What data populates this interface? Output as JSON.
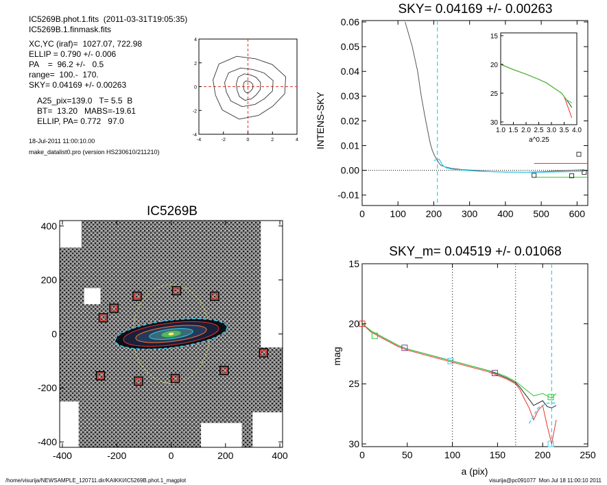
{
  "header": {
    "lines": [
      "IC5269B.phot.1.fits  (2011-03-31T19:05:35)",
      "IC5269B.1.finmask.fits",
      "XC,YC (iraf)=  1027.07, 722.98",
      "ELLIP = 0.790 +/- 0.006",
      "PA    =  96.2 +/-   0.5",
      "range=  100.-  170.",
      "SKY= 0.04169 +/- 0.00263",
      "A25_pix=139.0   T= 5.5  B",
      "BT=  13.20   MABS=-19.61",
      "ELLIP, PA= 0.772   97.0"
    ],
    "date": "18-Jul-2011 11:00:10.00",
    "program": "make_datalist0.pro (version HS230610/211210)"
  },
  "footer": {
    "path": "/home/visurija/NEWSAMPLE_120711.dir/KAIKKI/IC5269B.phot.1_magplot",
    "user": "visurija@pc091077  Mon Jul 18 11:00:10 2011"
  },
  "colors": {
    "cyan": "#33ccee",
    "red": "#e8302a",
    "green": "#2ec82e",
    "grey": "#555555",
    "magenta": "#8a3a9a",
    "yellow": "#c8d060"
  },
  "chart_data": [
    {
      "id": "contour",
      "type": "contour",
      "xlim": [
        -4,
        4
      ],
      "ylim": [
        -4,
        4
      ],
      "xticks": [
        "-4",
        "-2",
        "0",
        "2",
        "4"
      ],
      "yticks": [
        "4",
        "2",
        "0",
        "-2",
        "-4"
      ]
    },
    {
      "id": "sky_profile",
      "type": "line",
      "title": "SKY= 0.04169 +/- 0.00263",
      "xlabel": "",
      "ylabel": "INTENS-SKY",
      "xlim": [
        0,
        630
      ],
      "ylim": [
        -0.012,
        0.06
      ],
      "xticks": [
        "0",
        "100",
        "200",
        "300",
        "400",
        "500",
        "600"
      ],
      "yticks": [
        "0.06",
        "0.05",
        "0.04",
        "0.03",
        "0.02",
        "0.01",
        "0.00",
        "-0.01"
      ],
      "vline_x": 210,
      "series": [
        {
          "x": [
            120,
            140,
            155,
            165,
            175,
            183,
            190,
            196,
            202,
            208,
            214,
            220,
            230,
            250,
            280,
            320,
            360,
            400,
            450,
            500,
            550,
            600,
            620
          ],
          "y": [
            0.06,
            0.05,
            0.04,
            0.03,
            0.022,
            0.016,
            0.011,
            0.008,
            0.006,
            0.0045,
            0.003,
            0.002,
            0.0015,
            0.0008,
            0.0003,
            0,
            -0.0005,
            -0.0007,
            -0.0008,
            -0.0006,
            -0.0002,
            0.0001,
            0.0002
          ]
        },
        {
          "x": [
            200,
            215,
            225,
            235,
            250,
            280,
            320,
            400,
            480,
            550,
            620
          ],
          "y": [
            0.004,
            0.0045,
            0.002,
            0.001,
            0.0005,
            0.0001,
            -0.0003,
            -0.0007,
            -0.0008,
            -0.0006,
            -0.0004
          ]
        }
      ],
      "squares": [
        {
          "x": 480,
          "y": -0.002
        },
        {
          "x": 585,
          "y": -0.0022
        },
        {
          "x": 605,
          "y": 0.0065
        },
        {
          "x": 620,
          "y": -0.0008
        }
      ],
      "ref_lines": [
        {
          "y": 0.0028,
          "x0": 480,
          "x1": 630
        },
        {
          "y": -0.0028,
          "x0": 480,
          "x1": 630
        }
      ],
      "inset": {
        "xlabel": "a^0.25",
        "xlim": [
          1.0,
          4.0
        ],
        "ylim": [
          15,
          30
        ],
        "xticks": [
          "1.0",
          "1.5",
          "2.0",
          "2.5",
          "3.0",
          "3.5",
          "4.0"
        ],
        "yticks": [
          "15",
          "20",
          "25",
          "30"
        ],
        "x": [
          1.0,
          1.5,
          2.0,
          2.5,
          2.8,
          3.0,
          3.2,
          3.4,
          3.5,
          3.6,
          3.7,
          3.8
        ],
        "y": [
          20.0,
          20.9,
          21.7,
          22.6,
          23.2,
          23.8,
          24.4,
          25.0,
          25.6,
          26.2,
          26.8,
          27.5
        ]
      }
    },
    {
      "id": "galaxy_image",
      "type": "image",
      "title": "IC5269B",
      "xlim": [
        -410,
        410
      ],
      "ylim": [
        -420,
        420
      ],
      "xticks": [
        "-400",
        "-200",
        "0",
        "200",
        "400"
      ],
      "yticks": [
        "400",
        "200",
        "0",
        "-200",
        "-400"
      ],
      "boxes": [
        [
          -125,
          140
        ],
        [
          20,
          160
        ],
        [
          160,
          140
        ],
        [
          -210,
          95
        ],
        [
          -250,
          60
        ],
        [
          340,
          -70
        ],
        [
          195,
          -135
        ],
        [
          -260,
          -155
        ],
        [
          -120,
          -175
        ],
        [
          15,
          -165
        ]
      ]
    },
    {
      "id": "mag_profile",
      "type": "line",
      "title": "SKY_m=  0.04519 +/- 0.01068",
      "xlabel": "a (pix)",
      "ylabel": "mag",
      "xlim": [
        0,
        250
      ],
      "ylim": [
        15,
        30
      ],
      "xticks": [
        "0",
        "50",
        "100",
        "150",
        "200",
        "250"
      ],
      "yticks": [
        "15",
        "20",
        "25",
        "30"
      ],
      "dotted_x": [
        100,
        170
      ],
      "dashed_x": 210,
      "series": [
        {
          "x": [
            0,
            10,
            20,
            30,
            40,
            50,
            60,
            70,
            80,
            90,
            100,
            110,
            120,
            130,
            140,
            150,
            160,
            170,
            175,
            180,
            185,
            190,
            195,
            200,
            205,
            210,
            215
          ],
          "y": [
            20.0,
            20.6,
            21.0,
            21.4,
            21.8,
            22.1,
            22.3,
            22.5,
            22.7,
            22.9,
            23.1,
            23.3,
            23.5,
            23.7,
            23.9,
            24.2,
            24.5,
            24.9,
            25.3,
            25.8,
            26.3,
            26.8,
            26.6,
            26.4,
            26.9,
            27.0,
            26.8
          ]
        },
        {
          "x": [
            0,
            10,
            20,
            30,
            40,
            50,
            60,
            70,
            80,
            90,
            100,
            110,
            120,
            130,
            140,
            150,
            160,
            170,
            175,
            180,
            185,
            190,
            195,
            200,
            205,
            210,
            215
          ],
          "y": [
            20.0,
            20.7,
            21.1,
            21.5,
            21.9,
            22.2,
            22.4,
            22.6,
            22.8,
            23.0,
            23.2,
            23.4,
            23.6,
            23.8,
            24.0,
            24.3,
            24.6,
            25.0,
            25.5,
            26.3,
            27.0,
            28.0,
            27.2,
            26.8,
            28.5,
            30.0,
            28.0
          ]
        },
        {
          "x": [
            0,
            10,
            20,
            30,
            40,
            50,
            60,
            70,
            80,
            90,
            100,
            110,
            120,
            130,
            140,
            150,
            160,
            170,
            175,
            180,
            185,
            190,
            195,
            200,
            205,
            210,
            215
          ],
          "y": [
            20.0,
            20.6,
            21.0,
            21.4,
            21.8,
            22.1,
            22.3,
            22.5,
            22.7,
            22.9,
            23.1,
            23.3,
            23.5,
            23.7,
            23.9,
            24.1,
            24.4,
            24.8,
            25.1,
            25.4,
            25.7,
            26.0,
            25.9,
            25.8,
            26.0,
            26.2,
            25.8
          ]
        }
      ],
      "squares": [
        {
          "x": 0,
          "y": 20.0,
          "c": "red"
        },
        {
          "x": 14,
          "y": 21.0,
          "c": "green"
        },
        {
          "x": 47,
          "y": 22.0,
          "c": "magenta"
        },
        {
          "x": 98,
          "y": 23.1,
          "c": "cyan"
        },
        {
          "x": 147,
          "y": 24.1,
          "c": "magenta"
        },
        {
          "x": 209,
          "y": 26.1,
          "c": "green"
        },
        {
          "x": 209,
          "y": 30.0,
          "c": "cyan"
        }
      ],
      "cyan_dash": {
        "x": [
          185,
          195,
          205,
          215
        ],
        "y": [
          28.3,
          27.0,
          26.6,
          26.6
        ]
      }
    }
  ]
}
